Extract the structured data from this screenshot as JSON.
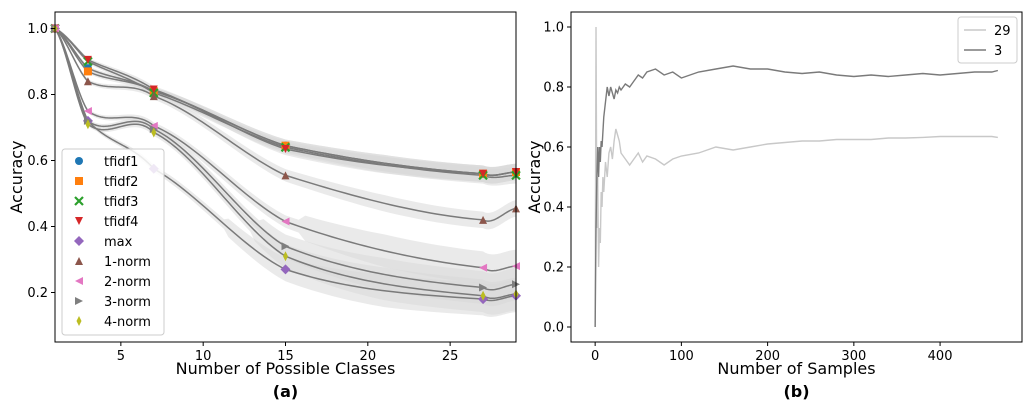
{
  "chart_data": [
    {
      "type": "line",
      "panel_label": "(a)",
      "xlabel": "Number of Possible Classes",
      "ylabel": "Accuracy",
      "xlim": [
        1,
        29
      ],
      "ylim": [
        0.05,
        1.05
      ],
      "xticks": [
        5,
        10,
        15,
        20,
        25
      ],
      "yticks": [
        0.2,
        0.4,
        0.6,
        0.8,
        1.0
      ],
      "x": [
        1,
        3,
        7,
        15,
        27,
        29
      ],
      "grid": false,
      "legend_position": "lower-left",
      "series": [
        {
          "name": "tfidf1",
          "marker": "circle",
          "color": "#1f77b4",
          "values": [
            1.0,
            0.88,
            0.81,
            0.645,
            0.56,
            0.565
          ]
        },
        {
          "name": "tfidf2",
          "marker": "square",
          "color": "#ff7f0e",
          "values": [
            1.0,
            0.87,
            0.81,
            0.645,
            0.56,
            0.565
          ]
        },
        {
          "name": "tfidf3",
          "marker": "x",
          "color": "#2ca02c",
          "values": [
            1.0,
            0.9,
            0.805,
            0.64,
            0.555,
            0.555
          ]
        },
        {
          "name": "tfidf4",
          "marker": "triangle-down",
          "color": "#d62728",
          "values": [
            1.0,
            0.905,
            0.815,
            0.635,
            0.56,
            0.565
          ]
        },
        {
          "name": "max",
          "marker": "diamond",
          "color": "#9467bd",
          "values": [
            1.0,
            0.72,
            0.575,
            0.27,
            0.18,
            0.19
          ]
        },
        {
          "name": "1-norm",
          "marker": "triangle-up",
          "color": "#8c564b",
          "values": [
            1.0,
            0.84,
            0.795,
            0.555,
            0.42,
            0.455
          ]
        },
        {
          "name": "2-norm",
          "marker": "triangle-left",
          "color": "#e377c2",
          "values": [
            1.0,
            0.75,
            0.705,
            0.415,
            0.275,
            0.28
          ]
        },
        {
          "name": "3-norm",
          "marker": "triangle-right",
          "color": "#7f7f7f",
          "values": [
            1.0,
            0.72,
            0.695,
            0.34,
            0.215,
            0.225
          ]
        },
        {
          "name": "4-norm",
          "marker": "thin-diamond",
          "color": "#bcbd22",
          "values": [
            1.0,
            0.71,
            0.685,
            0.31,
            0.19,
            0.195
          ]
        }
      ]
    },
    {
      "type": "line",
      "panel_label": "(b)",
      "xlabel": "Number of Samples",
      "ylabel": "Accuracy",
      "xlim": [
        -28,
        495
      ],
      "ylim": [
        -0.05,
        1.05
      ],
      "xticks": [
        0,
        100,
        200,
        300,
        400
      ],
      "yticks": [
        0.0,
        0.2,
        0.4,
        0.6,
        0.8,
        1.0
      ],
      "grid": false,
      "legend_position": "top-right",
      "series": [
        {
          "name": "29",
          "color": "#c8c8c8",
          "x": [
            0,
            1,
            2,
            3,
            4,
            5,
            6,
            7,
            8,
            9,
            10,
            12,
            14,
            16,
            18,
            20,
            22,
            24,
            26,
            28,
            30,
            35,
            40,
            45,
            50,
            55,
            60,
            70,
            80,
            90,
            100,
            120,
            140,
            160,
            180,
            200,
            220,
            240,
            260,
            280,
            300,
            320,
            340,
            360,
            380,
            400,
            420,
            440,
            460,
            467
          ],
          "values": [
            0.0,
            1.0,
            0.33,
            0.5,
            0.2,
            0.33,
            0.28,
            0.45,
            0.4,
            0.5,
            0.45,
            0.55,
            0.5,
            0.58,
            0.6,
            0.56,
            0.62,
            0.66,
            0.64,
            0.62,
            0.58,
            0.56,
            0.54,
            0.56,
            0.58,
            0.55,
            0.57,
            0.56,
            0.54,
            0.56,
            0.57,
            0.58,
            0.6,
            0.59,
            0.6,
            0.61,
            0.615,
            0.62,
            0.62,
            0.625,
            0.625,
            0.625,
            0.63,
            0.63,
            0.632,
            0.635,
            0.635,
            0.635,
            0.635,
            0.632
          ]
        },
        {
          "name": "3",
          "color": "#7a7a7a",
          "x": [
            0,
            1,
            2,
            3,
            4,
            5,
            6,
            7,
            8,
            9,
            10,
            12,
            14,
            16,
            18,
            20,
            22,
            24,
            26,
            28,
            30,
            35,
            40,
            45,
            50,
            55,
            60,
            70,
            80,
            90,
            100,
            120,
            140,
            160,
            180,
            200,
            220,
            240,
            260,
            280,
            300,
            320,
            340,
            360,
            380,
            400,
            420,
            440,
            460,
            467
          ],
          "values": [
            0.0,
            0.33,
            0.5,
            0.6,
            0.5,
            0.6,
            0.55,
            0.62,
            0.6,
            0.65,
            0.7,
            0.75,
            0.8,
            0.77,
            0.8,
            0.78,
            0.76,
            0.79,
            0.78,
            0.8,
            0.79,
            0.81,
            0.8,
            0.82,
            0.84,
            0.83,
            0.85,
            0.86,
            0.84,
            0.85,
            0.83,
            0.85,
            0.86,
            0.87,
            0.86,
            0.86,
            0.85,
            0.845,
            0.85,
            0.84,
            0.835,
            0.84,
            0.835,
            0.84,
            0.845,
            0.84,
            0.845,
            0.85,
            0.85,
            0.855
          ]
        }
      ]
    }
  ]
}
